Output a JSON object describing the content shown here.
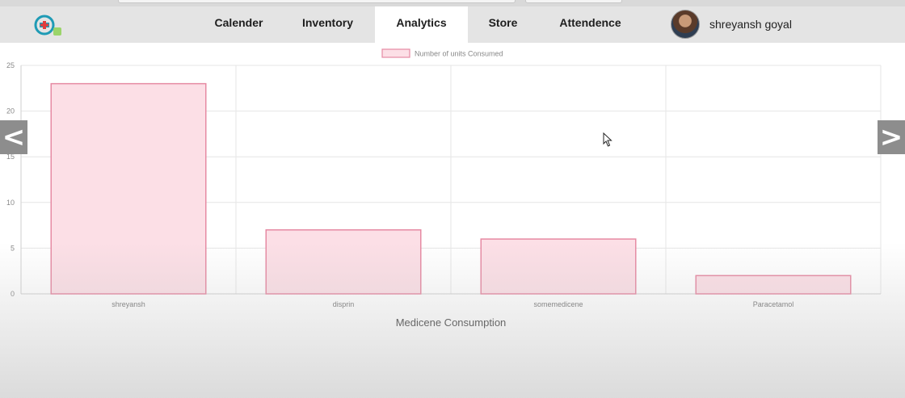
{
  "nav": {
    "tabs": [
      {
        "label": "Calender",
        "active": false
      },
      {
        "label": "Inventory",
        "active": false
      },
      {
        "label": "Analytics",
        "active": true
      },
      {
        "label": "Store",
        "active": false
      },
      {
        "label": "Attendence",
        "active": false
      }
    ],
    "user_name": "shreyansh goyal"
  },
  "carousel": {
    "prev_icon": "<",
    "next_icon": ">"
  },
  "colors": {
    "bar_fill": "#fcdfe6",
    "bar_stroke": "#e68aa3",
    "grid": "#e6e6e6",
    "nav_bg": "#e4e4e4",
    "active_tab_bg": "#ffffff"
  },
  "chart_data": {
    "type": "bar",
    "categories": [
      "shreyansh",
      "disprin",
      "somemedicene",
      "Paracetamol"
    ],
    "series": [
      {
        "name": "Number of units Consumed",
        "values": [
          23,
          7,
          6,
          2
        ]
      }
    ],
    "xlabel": "Medicene Consumption",
    "ylabel": "",
    "ylim": [
      0,
      25
    ],
    "yticks": [
      0,
      5,
      10,
      15,
      20,
      25
    ],
    "grid": true,
    "legend_position": "top-center"
  }
}
